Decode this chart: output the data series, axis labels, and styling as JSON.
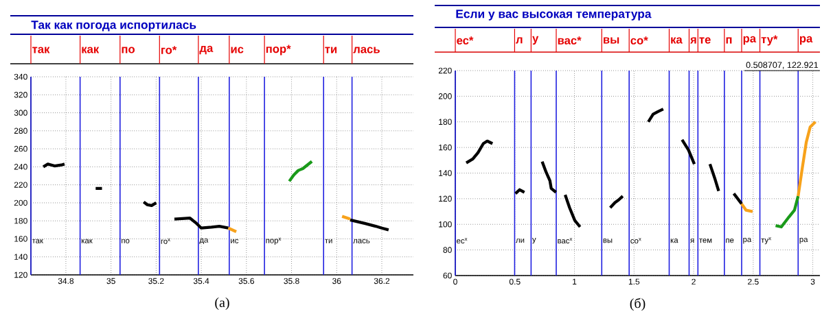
{
  "chart_data": [
    {
      "type": "line",
      "title": "Так как погода испортилась",
      "subtitle": "(а)",
      "xlim": [
        34.645,
        36.34
      ],
      "ylim": [
        120,
        340
      ],
      "xticks": [
        34.8,
        35,
        35.2,
        35.4,
        35.6,
        35.8,
        36,
        36.2
      ],
      "yticks": [
        120,
        140,
        160,
        180,
        200,
        220,
        240,
        260,
        280,
        300,
        320,
        340
      ],
      "grid": true,
      "marker": "none",
      "line_style": "solid",
      "series": [
        {
          "color": "#000000",
          "x": [
            34.7,
            34.72,
            34.75,
            34.78,
            34.794
          ],
          "values": [
            240,
            243,
            241,
            242,
            243
          ]
        },
        {
          "color": "#000000",
          "x": [
            34.932,
            34.96
          ],
          "values": [
            216,
            216
          ]
        },
        {
          "color": "#000000",
          "x": [
            35.145,
            35.16,
            35.18,
            35.2
          ],
          "values": [
            201,
            198,
            197,
            200
          ]
        },
        {
          "color": "#000000",
          "x": [
            35.281,
            35.35,
            35.375,
            35.4,
            35.445,
            35.48,
            35.52
          ],
          "values": [
            182,
            183,
            178,
            172,
            173,
            174,
            172
          ]
        },
        {
          "color": "#f7a21b",
          "x": [
            35.52,
            35.555
          ],
          "values": [
            172,
            168
          ]
        },
        {
          "color": "#1a9a1a",
          "x": [
            35.79,
            35.81,
            35.83,
            35.85,
            35.87,
            35.89
          ],
          "values": [
            224,
            231,
            236,
            238,
            242,
            246
          ]
        },
        {
          "color": "#f7a21b",
          "x": [
            36.024,
            36.06
          ],
          "values": [
            185,
            182
          ]
        },
        {
          "color": "#000000",
          "x": [
            36.06,
            36.127,
            36.173,
            36.2,
            36.23
          ],
          "values": [
            181,
            177,
            174,
            172,
            170
          ]
        }
      ],
      "ref_lines": [
        {
          "axis": "x",
          "value": 34.645,
          "label": "так",
          "color": "#2020e0"
        },
        {
          "axis": "x",
          "value": 34.863,
          "label": "как",
          "color": "#2020e0"
        },
        {
          "axis": "x",
          "value": 35.04,
          "label": "по",
          "color": "#2020e0"
        },
        {
          "axis": "x",
          "value": 35.215,
          "label": "го$^{x}$",
          "color": "#2020e0"
        },
        {
          "axis": "x",
          "value": 35.387,
          "label": "да",
          "color": "#2020e0"
        },
        {
          "axis": "x",
          "value": 35.524,
          "label": "ис",
          "color": "#2020e0"
        },
        {
          "axis": "x",
          "value": 35.68,
          "label": "пор$^{x}$",
          "color": "#2020e0"
        },
        {
          "axis": "x",
          "value": 35.942,
          "label": "ти",
          "color": "#2020e0"
        },
        {
          "axis": "x",
          "value": 36.068,
          "label": "лась",
          "color": "#2020e0"
        }
      ],
      "annotations": [
        "так",
        "как",
        "по",
        "го*",
        "да",
        "ис",
        "пор*",
        "ти",
        "лась"
      ]
    },
    {
      "type": "line",
      "title": "Если у вас высокая температура",
      "subtitle": "(б)",
      "xlim": [
        0,
        3.06
      ],
      "ylim": [
        60,
        220
      ],
      "xticks": [
        0,
        0.5,
        1,
        1.5,
        2,
        2.5,
        3
      ],
      "yticks": [
        60,
        80,
        100,
        120,
        140,
        160,
        180,
        200,
        220
      ],
      "grid": true,
      "marker": "none",
      "line_style": "solid",
      "series": [
        {
          "color": "#000000",
          "x": [
            0.092,
            0.147,
            0.191,
            0.235,
            0.268,
            0.312,
            0.41,
            0.505,
            0.54,
            0.58,
            0.65,
            0.729,
            0.761,
            0.794,
            0.805,
            0.845,
            0.88,
            0.922,
            0.959,
            1.003,
            1.047,
            1.2,
            1.3,
            1.34,
            1.37,
            1.405,
            1.5,
            1.62,
            1.66,
            1.7,
            1.745,
            1.82,
            1.903,
            1.957,
            2.006,
            2.07,
            2.137,
            2.177,
            2.21,
            2.27,
            2.337,
            2.403
          ],
          "values": [
            148,
            151,
            156,
            163,
            165,
            163,
            null,
            124,
            127,
            125,
            null,
            149,
            141,
            134,
            128,
            125,
            null,
            123,
            113,
            103,
            98,
            null,
            113,
            117,
            119,
            122,
            null,
            180,
            186,
            188,
            190,
            null,
            166,
            158,
            147,
            null,
            147,
            136,
            126,
            null,
            124,
            116
          ]
        },
        {
          "color": "#f7a21b",
          "x": [
            2.403,
            2.44,
            2.495
          ],
          "values": [
            116,
            111,
            110
          ]
        },
        {
          "color": "#1a9a1a",
          "x": [
            2.688,
            2.736,
            2.802,
            2.846,
            2.877
          ],
          "values": [
            99,
            98,
            106,
            111,
            122
          ]
        },
        {
          "color": "#f7a21b",
          "x": [
            2.877,
            2.912,
            2.945,
            2.978,
            3.022
          ],
          "values": [
            122,
            144,
            164,
            176,
            180
          ]
        }
      ],
      "ref_lines": [
        {
          "axis": "x",
          "value": 0,
          "label": "ес$^{x}$",
          "color": "#2020e0"
        },
        {
          "axis": "x",
          "value": 0.498,
          "label": "ли",
          "color": "#2020e0"
        },
        {
          "axis": "x",
          "value": 0.636,
          "label": "у",
          "color": "#2020e0"
        },
        {
          "axis": "x",
          "value": 0.847,
          "label": "вас$^{x}$",
          "color": "#2020e0"
        },
        {
          "axis": "x",
          "value": 1.229,
          "label": "вы",
          "color": "#2020e0"
        },
        {
          "axis": "x",
          "value": 1.459,
          "label": "со$^{x}$",
          "color": "#2020e0"
        },
        {
          "axis": "x",
          "value": 1.795,
          "label": "ка",
          "color": "#2020e0"
        },
        {
          "axis": "x",
          "value": 1.962,
          "label": "я",
          "color": "#2020e0"
        },
        {
          "axis": "x",
          "value": 2.036,
          "label": "тем",
          "color": "#2020e0"
        },
        {
          "axis": "x",
          "value": 2.258,
          "label": "пе",
          "color": "#2020e0"
        },
        {
          "axis": "x",
          "value": 2.403,
          "label": "ра",
          "color": "#2020e0"
        },
        {
          "axis": "x",
          "value": 2.556,
          "label": "ту$^{x}$",
          "color": "#2020e0"
        },
        {
          "axis": "x",
          "value": 2.877,
          "label": "ра",
          "color": "#2020e0"
        }
      ],
      "annotations": [
        "ес*",
        "л",
        "у",
        "вас*",
        "вы",
        "со*",
        "ка",
        "я",
        "те",
        "п",
        "ра",
        "ту*",
        "ра",
        "0.508707, 122.921"
      ]
    }
  ]
}
